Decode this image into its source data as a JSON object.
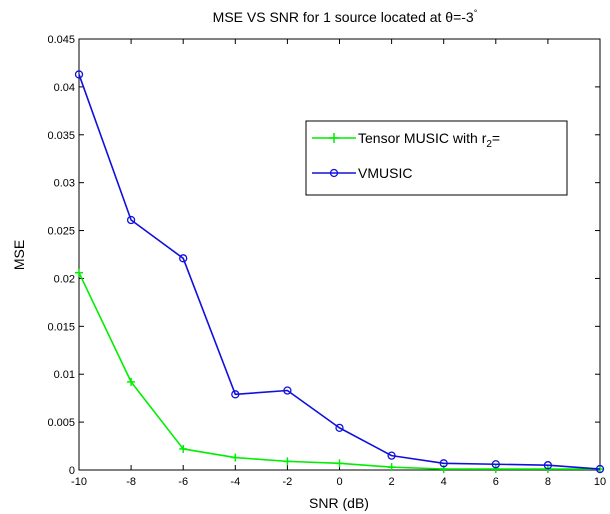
{
  "chart_data": {
    "type": "line",
    "title": "MSE VS SNR for 1 source located at θ=-3°",
    "title_main": "MSE VS SNR for 1 source located at θ=-3",
    "title_degree": "°",
    "xlabel": "SNR (dB)",
    "ylabel": "MSE",
    "xlim": [
      -10,
      10
    ],
    "ylim": [
      0,
      0.045
    ],
    "grid": false,
    "legend_position": "upper-right",
    "x": [
      -10,
      -8,
      -6,
      -4,
      -2,
      0,
      2,
      4,
      6,
      8,
      10
    ],
    "x_tick_labels": [
      "-10",
      "-8",
      "-6",
      "-4",
      "-2",
      "0",
      "2",
      "4",
      "6",
      "8",
      "10"
    ],
    "y_ticks": [
      0,
      0.005,
      0.01,
      0.015,
      0.02,
      0.025,
      0.03,
      0.035,
      0.04,
      0.045
    ],
    "y_tick_labels": [
      "0",
      "0.005",
      "0.01",
      "0.015",
      "0.02",
      "0.025",
      "0.03",
      "0.035",
      "0.04",
      "0.045"
    ],
    "series": [
      {
        "name": "Tensor MUSIC with r₂=",
        "legend_main": "Tensor MUSIC with r",
        "legend_sub": "2",
        "legend_tail": "=",
        "color": "#00ee00",
        "marker": "plus",
        "values": [
          0.0206,
          0.0092,
          0.0022,
          0.0013,
          0.0009,
          0.0007,
          0.0003,
          0.0001,
          0.0001,
          0.0001,
          0.0001
        ]
      },
      {
        "name": "VMUSIC",
        "color": "#1010dd",
        "marker": "circle",
        "values": [
          0.0413,
          0.0261,
          0.0221,
          0.0079,
          0.0083,
          0.0044,
          0.0015,
          0.0007,
          0.0006,
          0.0005,
          0.0001
        ]
      }
    ]
  }
}
